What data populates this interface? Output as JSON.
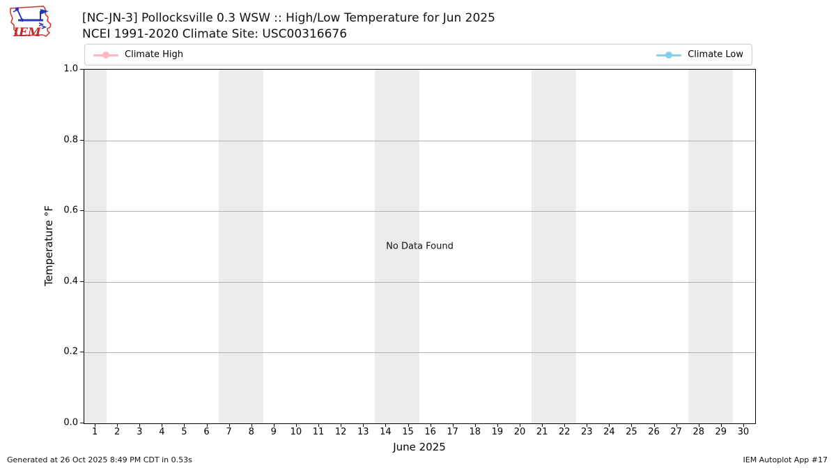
{
  "logo": {
    "text": "IEM"
  },
  "header": {
    "title_line1": "[NC-JN-3] Pollocksville 0.3 WSW :: High/Low Temperature for Jun 2025",
    "title_line2": "NCEI 1991-2020 Climate Site: USC00316676"
  },
  "chart_data": {
    "type": "line",
    "title": "[NC-JN-3] Pollocksville 0.3 WSW :: High/Low Temperature for Jun 2025",
    "subtitle": "NCEI 1991-2020 Climate Site: USC00316676",
    "xlabel": "June 2025",
    "ylabel": "Temperature °F",
    "xlim": [
      0.5,
      30.5
    ],
    "ylim": [
      0.0,
      1.0
    ],
    "x_ticks": [
      1,
      2,
      3,
      4,
      5,
      6,
      7,
      8,
      9,
      10,
      11,
      12,
      13,
      14,
      15,
      16,
      17,
      18,
      19,
      20,
      21,
      22,
      23,
      24,
      25,
      26,
      27,
      28,
      29,
      30
    ],
    "y_ticks": [
      "0.0",
      "0.2",
      "0.4",
      "0.6",
      "0.8",
      "1.0"
    ],
    "grid": "horizontal",
    "gridline_color": "#b0b0b0",
    "weekend_band_color": "#ececec",
    "weekend_bands": [
      [
        0.5,
        1.5
      ],
      [
        6.5,
        8.5
      ],
      [
        13.5,
        15.5
      ],
      [
        20.5,
        22.5
      ],
      [
        27.5,
        29.5
      ]
    ],
    "legend_position": "top",
    "series": [
      {
        "name": "Climate High",
        "color": "#ffb6c1",
        "values": []
      },
      {
        "name": "Climate Low",
        "color": "#87ceeb",
        "values": []
      }
    ],
    "no_data_message": "No Data Found"
  },
  "footer": {
    "left": "Generated at 26 Oct 2025 8:49 PM CDT in 0.53s",
    "right": "IEM Autoplot App #17"
  }
}
